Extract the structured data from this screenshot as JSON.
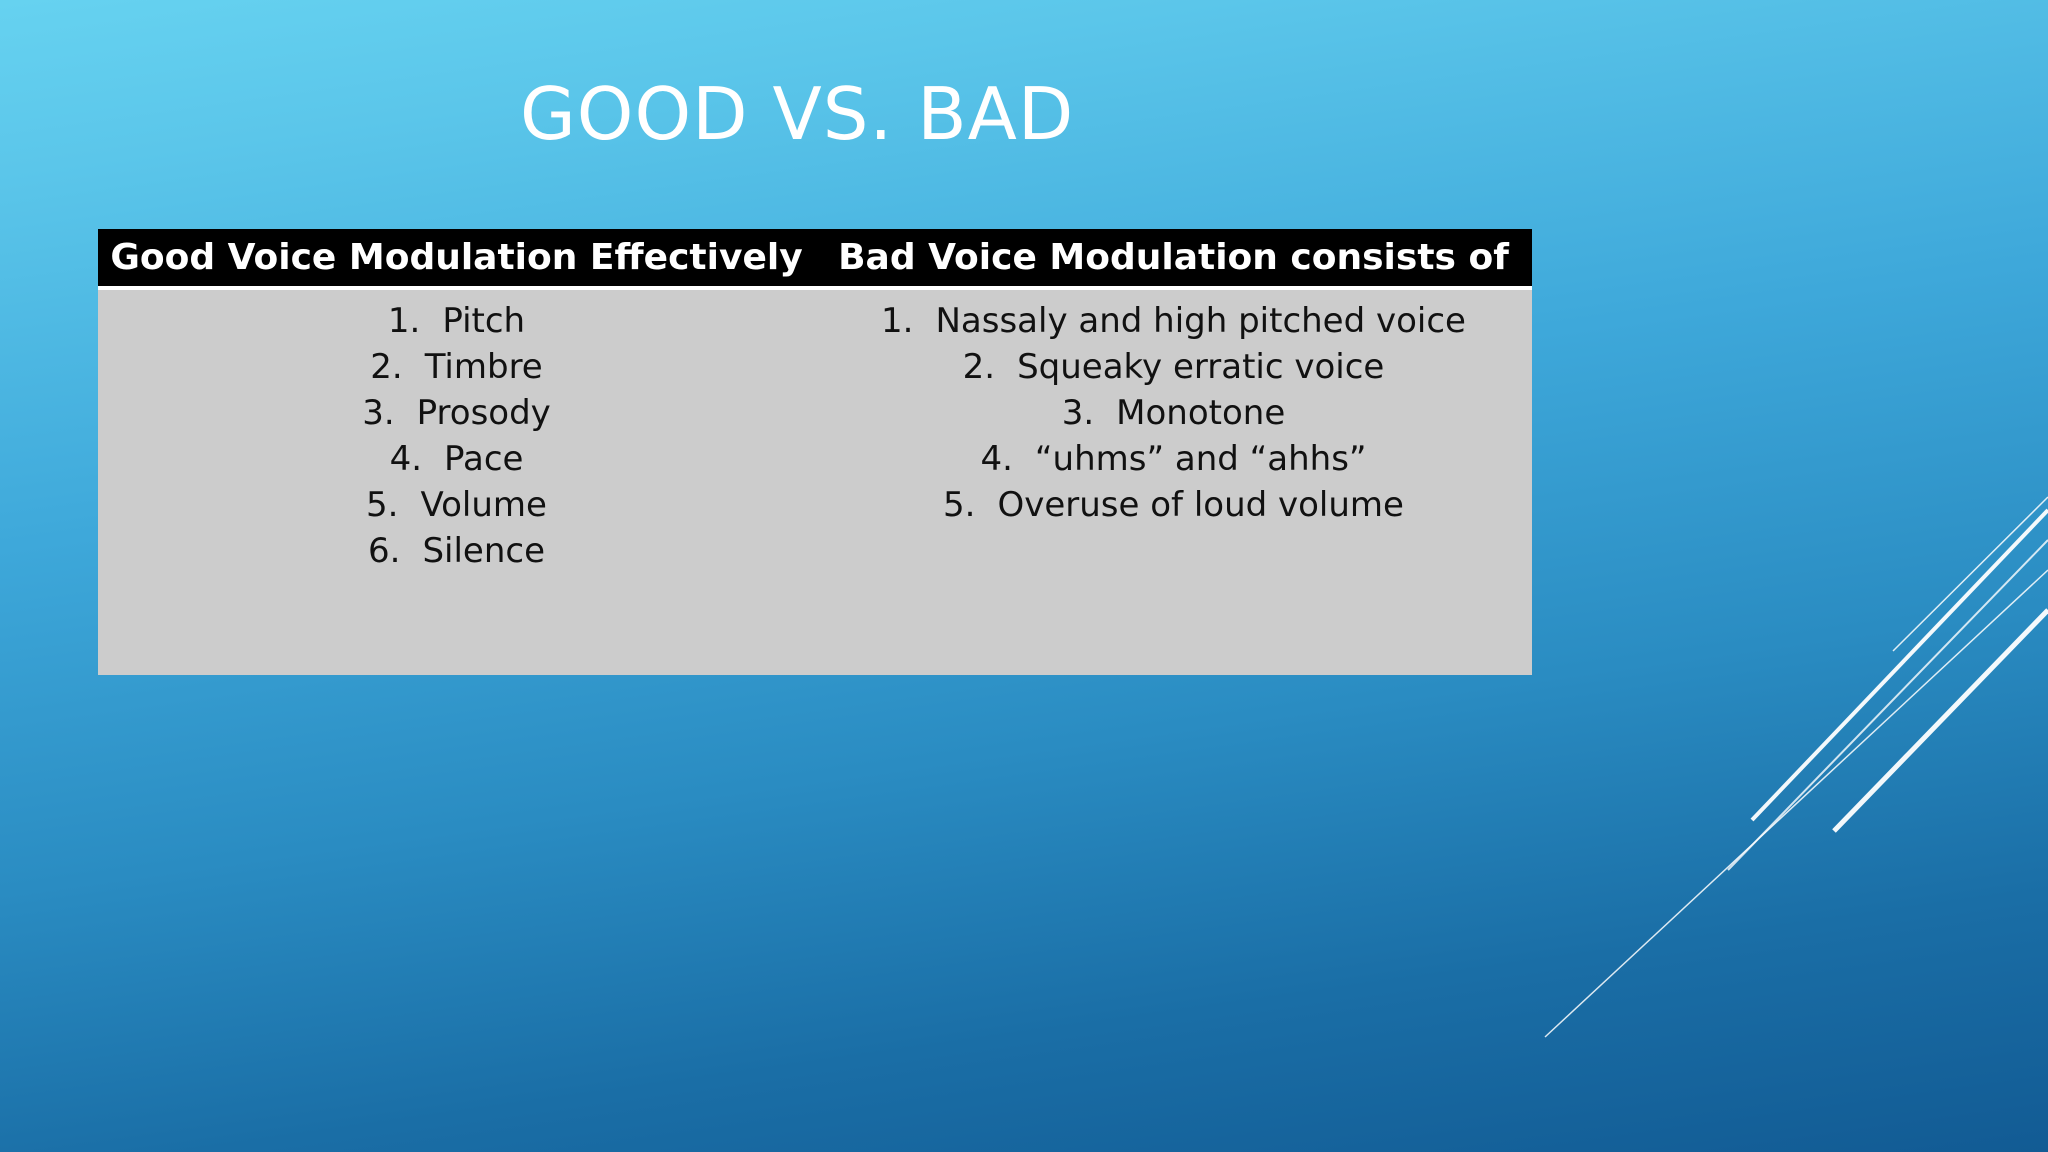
{
  "slide": {
    "title": "GOOD VS. BAD",
    "colors": {
      "title": "#ffffff",
      "header_background": "#000000",
      "header_text": "#ffffff",
      "table_body": "#cccccc",
      "background_top": "#66d2f0",
      "background_bottom": "#125b94"
    }
  },
  "table": {
    "headers": [
      "Good Voice Modulation Effectively",
      "Bad Voice Modulation consists of"
    ],
    "good_items": [
      {
        "num": "1.",
        "text": "Pitch"
      },
      {
        "num": "2.",
        "text": "Timbre"
      },
      {
        "num": "3.",
        "text": "Prosody"
      },
      {
        "num": "4.",
        "text": "Pace"
      },
      {
        "num": "5.",
        "text": "Volume"
      },
      {
        "num": "6.",
        "text": "Silence"
      }
    ],
    "bad_items": [
      {
        "num": "1.",
        "text": "Nassaly and high pitched voice"
      },
      {
        "num": "2.",
        "text": "Squeaky erratic voice"
      },
      {
        "num": "3.",
        "text": "Monotone"
      },
      {
        "num": "4.",
        "text": "“uhms” and “ahhs”"
      },
      {
        "num": "5.",
        "text": "Overuse of loud volume"
      }
    ]
  }
}
